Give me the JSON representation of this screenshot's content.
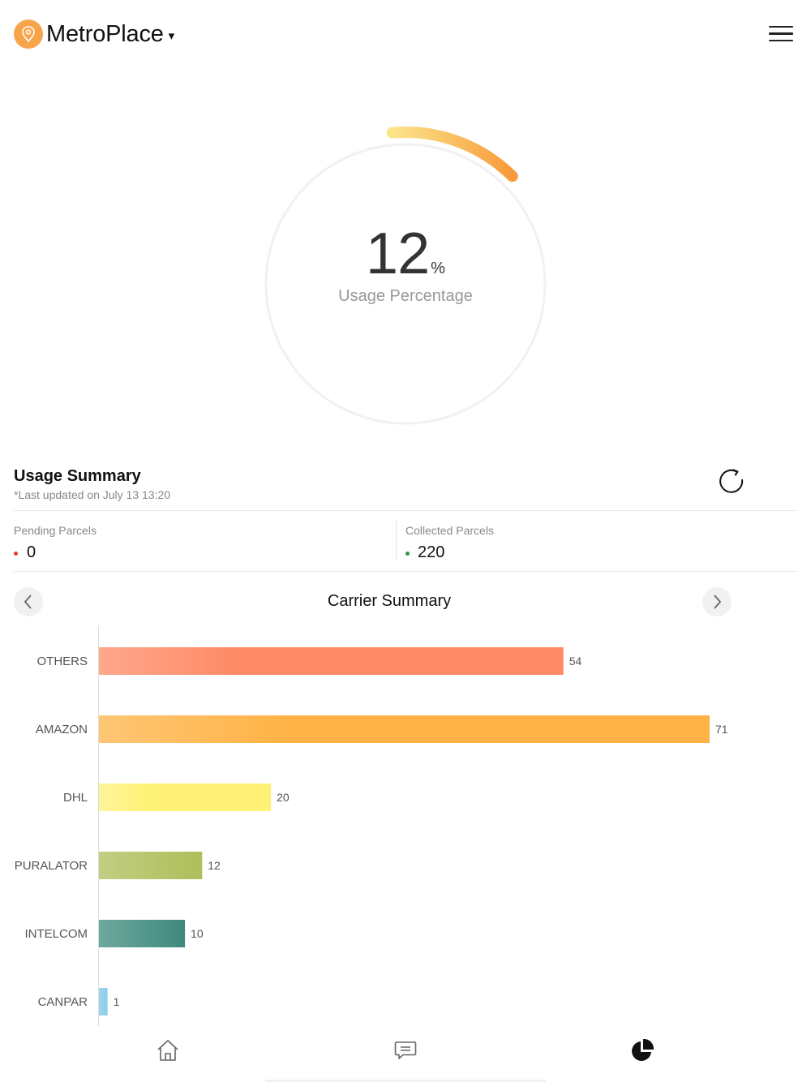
{
  "header": {
    "app_name": "MetroPlace",
    "caret": "▾"
  },
  "gauge": {
    "value": "12",
    "unit": "%",
    "label": "Usage Percentage",
    "fraction": 0.12
  },
  "summary": {
    "title": "Usage Summary",
    "updated": "*Last updated on July 13 13:20",
    "pending": {
      "label": "Pending Parcels",
      "value": "0",
      "dot_color": "#e53935"
    },
    "collected": {
      "label": "Collected Parcels",
      "value": "220",
      "dot_color": "#2e9a3a"
    }
  },
  "carrier": {
    "title": "Carrier Summary"
  },
  "chart_data": {
    "type": "bar",
    "orientation": "horizontal",
    "categories": [
      "OTHERS",
      "AMAZON",
      "DHL",
      "PURALATOR",
      "INTELCOM",
      "CANPAR"
    ],
    "values": [
      54,
      71,
      20,
      12,
      10,
      1
    ],
    "colors": [
      "#ff8a65",
      "#ffb347",
      "#fff176",
      "#aebe5a",
      "#3e8a7c",
      "#7dc6e8"
    ]
  },
  "tabs": [
    {
      "icon": "home-icon"
    },
    {
      "icon": "chat-icon"
    },
    {
      "icon": "pie-chart-icon",
      "active": true
    }
  ]
}
